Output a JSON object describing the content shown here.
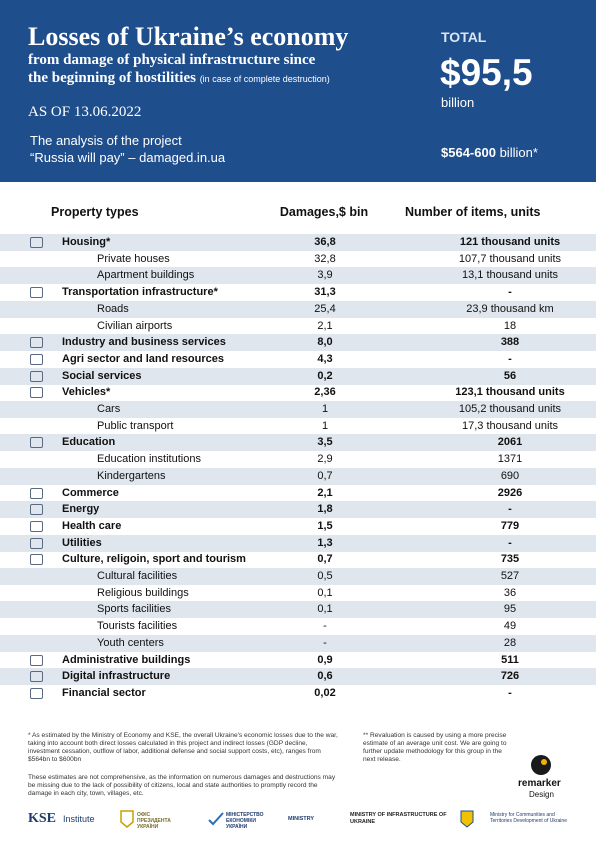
{
  "header": {
    "title": "Losses of Ukraine’s economy",
    "subtitle_line1": "from damage of physical infrastructure since",
    "subtitle_line2": "the beginning of hostilities",
    "subtitle_note": "(in case of complete destruction)",
    "date": "AS OF 13.06.2022",
    "analysis_line1": "The analysis of the project",
    "analysis_line2": "“Russia will pay” –",
    "analysis_link": "damaged.in.ua",
    "total_label": "TOTAL",
    "total_value": "$95,5",
    "total_unit": "billion",
    "range_value": "$564-600",
    "range_unit": "billion*"
  },
  "table": {
    "columns": [
      "Property types",
      "Damages,$ bin",
      "Number of items, units"
    ],
    "rows": [
      {
        "name": "Housing*",
        "damage": "36,8",
        "items": "121 thousand units",
        "sub": [
          {
            "name": "Private houses",
            "damage": "32,8",
            "items": "107,7 thousand units"
          },
          {
            "name": "Apartment buildings",
            "damage": "3,9",
            "items": "13,1 thousand units"
          }
        ]
      },
      {
        "name": "Transportation infrastructure*",
        "damage": "31,3",
        "items": "-",
        "sub": [
          {
            "name": "Roads",
            "damage": "25,4",
            "items": "23,9 thousand km"
          },
          {
            "name": "Civilian airports",
            "damage": "2,1",
            "items": "18"
          }
        ]
      },
      {
        "name": "Industry and business services",
        "damage": "8,0",
        "items": "388"
      },
      {
        "name": "Agri sector and land resources",
        "damage": "4,3",
        "items": "-"
      },
      {
        "name": "Social services",
        "damage": "0,2",
        "items": "56"
      },
      {
        "name": "Vehicles*",
        "damage": "2,36",
        "items": "123,1 thousand units",
        "sub": [
          {
            "name": "Cars",
            "damage": "1",
            "items": "105,2 thousand units"
          },
          {
            "name": "Public transport",
            "damage": "1",
            "items": "17,3 thousand units"
          }
        ]
      },
      {
        "name": "Education",
        "damage": "3,5",
        "items": "2061",
        "sub": [
          {
            "name": "Education institutions",
            "damage": "2,9",
            "items": "1371"
          },
          {
            "name": "Kindergartens",
            "damage": "0,7",
            "items": "690"
          }
        ]
      },
      {
        "name": "Commerce",
        "damage": "2,1",
        "items": "2926"
      },
      {
        "name": "Energy",
        "damage": "1,8",
        "items": "-"
      },
      {
        "name": "Health care",
        "damage": "1,5",
        "items": "779"
      },
      {
        "name": "Utilities",
        "damage": "1,3",
        "items": "-"
      },
      {
        "name": "Culture, religoin, sport and tourism",
        "damage": "0,7",
        "items": "735",
        "sub": [
          {
            "name": "Cultural facilities",
            "damage": "0,5",
            "items": "527"
          },
          {
            "name": "Religious buildings",
            "damage": "0,1",
            "items": "36"
          },
          {
            "name": "Sports facilities",
            "damage": "0,1",
            "items": "95"
          },
          {
            "name": "Tourists facilities",
            "damage": "-",
            "items": "49"
          },
          {
            "name": "Youth centers",
            "damage": "-",
            "items": "28"
          }
        ]
      },
      {
        "name": "Administrative buildings",
        "damage": "0,9",
        "items": "511"
      },
      {
        "name": "Digital infrastructure",
        "damage": "0,6",
        "items": "726"
      },
      {
        "name": "Financial sector",
        "damage": "0,02",
        "items": "-"
      }
    ]
  },
  "footer": {
    "note1": "* As estimated by the Ministry of Economy and KSE, the overall Ukraine's economic losses due to the war, taking into account both direct losses calculated in this project and indirect losses (GDP decline, investment cessation, outflow of labor, additional defense and social support costs, etc), ranges from $564bn to $600bn",
    "note2": "These estimates are not comprehensive, as the information on numerous damages and destructions may be missing due to the lack of possibility of citizens, local and state authorities to promptly record the damage in each city, town, villages, etc.",
    "note3": "** Revaluation is caused by using a more precise estimate of an average unit cost. We are going to further update methodology for this group in the next release.",
    "logos": {
      "kse": "KSE",
      "kse_sub": "Institute",
      "office": "ОФІС ПРЕЗИДЕНТА УКРАЇНИ",
      "economy": "МІНІСТЕРСТВО ЕКОНОМІКИ УКРАЇНИ",
      "ministry": "MINISTRY",
      "infrastructure": "MINISTRY OF INFRASTRUCTURE OF UKRAINE",
      "communities": "Ministry for Communities and Territories Development of Ukraine",
      "remarker": "remarker",
      "remarker_sub": "Design"
    }
  }
}
